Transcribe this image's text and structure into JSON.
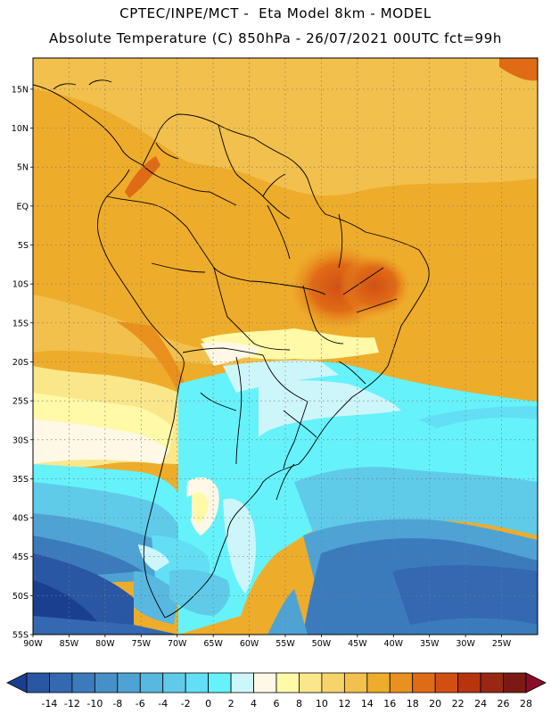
{
  "title_line1": "CPTEC/INPE/MCT -  Eta Model 8km - MODEL",
  "title_line2": "Absolute Temperature (C) 850hPa - 26/07/2021 00UTC fct=99h",
  "lat_labels": [
    "15N",
    "10N",
    "5N",
    "EQ",
    "5S",
    "10S",
    "15S",
    "20S",
    "25S",
    "30S",
    "35S",
    "40S",
    "45S",
    "50S",
    "55S"
  ],
  "lat_values": [
    15,
    10,
    5,
    0,
    -5,
    -10,
    -15,
    -20,
    -25,
    -30,
    -35,
    -40,
    -45,
    -50,
    -55
  ],
  "lon_labels": [
    "90W",
    "85W",
    "80W",
    "75W",
    "70W",
    "65W",
    "60W",
    "55W",
    "50W",
    "45W",
    "40W",
    "35W",
    "30W",
    "25W"
  ],
  "lon_values": [
    -90,
    -85,
    -80,
    -75,
    -70,
    -65,
    -60,
    -55,
    -50,
    -45,
    -40,
    -35,
    -30,
    -25
  ],
  "extent": {
    "lon_min": -90,
    "lon_max": -20,
    "lat_min": -55,
    "lat_max": 19
  },
  "colorbar": {
    "labels": [
      "-14",
      "-12",
      "-10",
      "-8",
      "-6",
      "-4",
      "-2",
      "0",
      "2",
      "4",
      "6",
      "8",
      "10",
      "12",
      "14",
      "16",
      "18",
      "20",
      "22",
      "24",
      "26",
      "28"
    ],
    "colors": [
      "#1b3f8f",
      "#2a57a3",
      "#3468b0",
      "#3b7bbc",
      "#4690c8",
      "#4fa3d4",
      "#58b8df",
      "#5fcbe9",
      "#62dff4",
      "#66f2fa",
      "#cdf6fb",
      "#fff8e6",
      "#fff9a8",
      "#f9e78a",
      "#f6d46a",
      "#f1c04d",
      "#eeac2b",
      "#e9901e",
      "#e06b16",
      "#d24f12",
      "#b8340f",
      "#982812",
      "#7a1a14",
      "#8a0d2a"
    ]
  }
}
